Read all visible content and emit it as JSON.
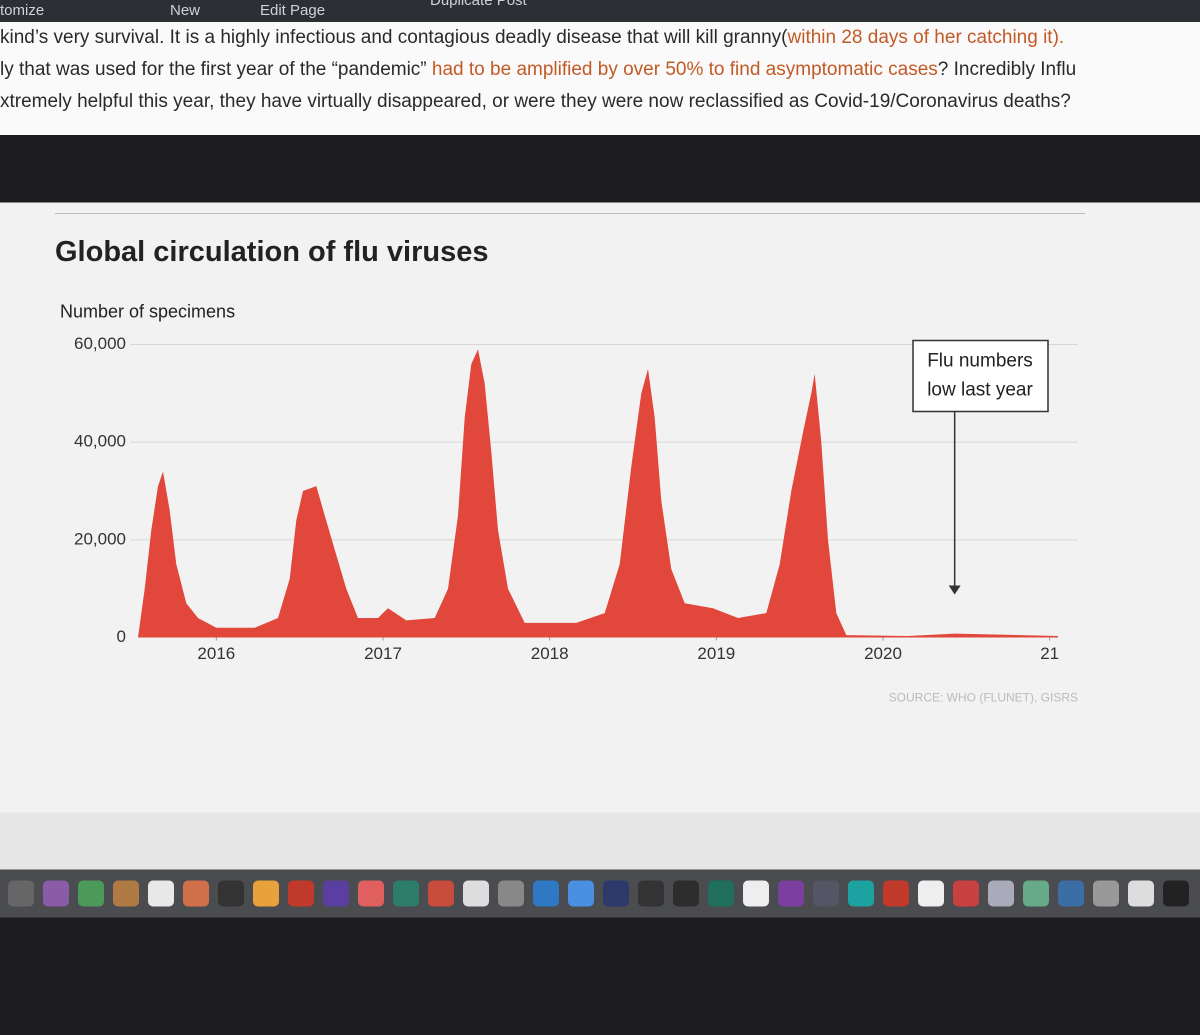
{
  "toolbar": {
    "items": [
      "tomize",
      "New",
      "Edit Page",
      "Duplicate Post"
    ]
  },
  "article": {
    "lines": [
      [
        "kind’s very survival. It is a highly infectious and contagious deadly disease that will kill granny(",
        "within 28 days of her catching it)."
      ],
      [
        "ly that was used for the first year of the “pandemic” ",
        "had to be amplified by over 50% to find asymptomatic cases",
        "? Incredibly Influ"
      ],
      [
        "xtremely helpful this year, they have virtually disappeared, or were they were now reclassified as Covid-19/Coronavirus deaths?"
      ]
    ]
  },
  "chart_data": {
    "type": "area",
    "title": "Global circulation of flu viruses",
    "y_label": "Number of specimens",
    "source": "SOURCE: WHO (FLUNET), GISRS",
    "annotation": [
      "Flu numbers",
      "low last year"
    ],
    "annotation_x": 2020.43,
    "color": "#e2473b",
    "x": [
      2015.53,
      2015.57,
      2015.61,
      2015.65,
      2015.68,
      2015.72,
      2015.76,
      2015.82,
      2015.89,
      2016.0,
      2016.23,
      2016.37,
      2016.44,
      2016.48,
      2016.52,
      2016.6,
      2016.65,
      2016.71,
      2016.78,
      2016.85,
      2016.97,
      2017.03,
      2017.14,
      2017.31,
      2017.39,
      2017.45,
      2017.49,
      2017.53,
      2017.57,
      2017.61,
      2017.65,
      2017.69,
      2017.75,
      2017.85,
      2018.16,
      2018.33,
      2018.42,
      2018.49,
      2018.55,
      2018.59,
      2018.63,
      2018.67,
      2018.73,
      2018.81,
      2018.98,
      2019.13,
      2019.3,
      2019.38,
      2019.45,
      2019.52,
      2019.57,
      2019.59,
      2019.63,
      2019.67,
      2019.72,
      2019.78,
      2020.15,
      2020.43,
      2021.05
    ],
    "values": [
      0,
      10000,
      22000,
      31000,
      34000,
      26000,
      15000,
      7000,
      4000,
      2000,
      2000,
      4000,
      12000,
      24000,
      30000,
      31000,
      25000,
      18000,
      10000,
      4000,
      4000,
      6000,
      3500,
      4000,
      10000,
      25000,
      45000,
      56000,
      59000,
      52000,
      38000,
      22000,
      10000,
      3000,
      3000,
      5000,
      15000,
      35000,
      50000,
      55000,
      45000,
      28000,
      14000,
      7000,
      6000,
      4000,
      5000,
      15000,
      30000,
      42000,
      50000,
      54000,
      40000,
      20000,
      5000,
      500,
      300,
      800,
      300
    ],
    "xlim": [
      2015.53,
      2021.05
    ],
    "xticks": [
      2016,
      2017,
      2018,
      2019,
      2020,
      {
        "value": 2021,
        "label": "21"
      }
    ],
    "ylim": [
      0,
      60000
    ],
    "yticks": [
      {
        "value": 0,
        "label": "0"
      },
      {
        "value": 20000,
        "label": "20,000"
      },
      {
        "value": 40000,
        "label": "40,000"
      },
      {
        "value": 60000,
        "label": "60,000"
      }
    ],
    "grid": true
  }
}
